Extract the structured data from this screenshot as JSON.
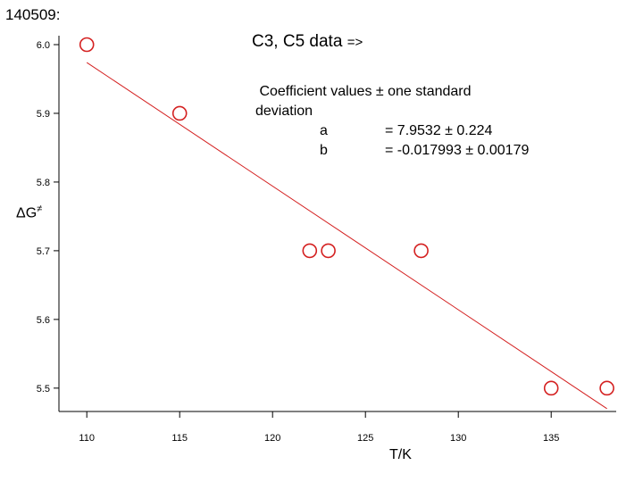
{
  "page": {
    "doc_id": "140509:",
    "title_main": "C3, C5 data",
    "title_arrow": "=>"
  },
  "fit_box": {
    "heading": " Coefficient values ± one standard",
    "heading_cont": "deviation",
    "rows": [
      {
        "name": "a",
        "value": "= 7.9532 ± 0.224"
      },
      {
        "name": "b",
        "value": "= -0.017993 ± 0.00179"
      }
    ]
  },
  "chart_data": {
    "type": "scatter",
    "xlabel": "T/K",
    "ylabel": "ΔG",
    "ylabel_sup": "≠",
    "xlim": [
      108.5,
      138.5
    ],
    "ylim": [
      5.466,
      6.013
    ],
    "xticks": [
      110,
      115,
      120,
      125,
      130,
      135
    ],
    "xtick_labels": [
      "110",
      "115",
      "120",
      "125",
      "130",
      "135"
    ],
    "yticks": [
      5.5,
      5.6,
      5.7,
      5.8,
      5.9,
      6.0
    ],
    "ytick_labels": [
      "5.5",
      "5.6",
      "5.7",
      "5.8",
      "5.9",
      "6.0"
    ],
    "grid": false,
    "series": [
      {
        "x": [
          110,
          115,
          122,
          123,
          128,
          135,
          138
        ],
        "y": [
          6.0,
          5.9,
          5.7,
          5.7,
          5.7,
          5.5,
          5.5
        ],
        "marker": "open-circle",
        "color": "#d42020"
      }
    ],
    "fit_line": {
      "a": 7.9532,
      "b": -0.017993,
      "x_range": [
        110,
        138
      ],
      "color": "#d42020"
    }
  }
}
